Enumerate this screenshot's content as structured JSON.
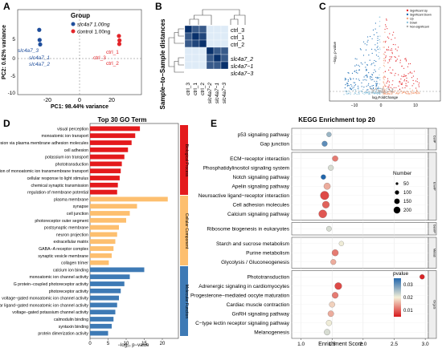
{
  "panelA": {
    "letter": "A",
    "legend_title": "Group",
    "legend_items": [
      {
        "label": "slc4a7 1.00ng",
        "color": "#1f4e9c"
      },
      {
        "label": "control 1.00ng",
        "color": "#e3262b"
      }
    ],
    "xlabel": "PC1: 98.44% variance",
    "ylabel": "PC2: 0.62% variance",
    "xticks": [
      "-20",
      "0",
      "20"
    ],
    "yticks": [
      "5",
      "0",
      "-5",
      "-10"
    ],
    "point_labels_blue": [
      "slc4a7_3",
      "slc4a7_1",
      "slc4a7_2"
    ],
    "point_labels_red": [
      "ctrl_1",
      "ctrl_3",
      "ctrl_2"
    ],
    "points": [
      {
        "x": -21.5,
        "y": 3.0,
        "group": 0
      },
      {
        "x": -21.3,
        "y": 0.5,
        "group": 0
      },
      {
        "x": -21.0,
        "y": -0.6,
        "group": 0
      },
      {
        "x": 21.0,
        "y": 1.5,
        "group": 1
      },
      {
        "x": 21.3,
        "y": 0.4,
        "group": 1
      },
      {
        "x": 21.2,
        "y": -0.5,
        "group": 1
      }
    ],
    "xlim": [
      -33,
      33
    ],
    "ylim": [
      -13,
      8
    ]
  },
  "panelB": {
    "letter": "B",
    "ylabel": "Sample−to−Sample distances",
    "row_labels": [
      "ctrl_3",
      "ctrl_1",
      "ctrl_2",
      "slc4a7_2",
      "slc4a7−1",
      "slc4a7−3"
    ],
    "col_labels": [
      "ctrl_3",
      "ctrl_1",
      "ctrl_2",
      "slc4a7−2",
      "slc4a7−1",
      "slc4a7−3"
    ],
    "matrix": [
      [
        0,
        2,
        2,
        9,
        9,
        9
      ],
      [
        2,
        0,
        1,
        9,
        9,
        9
      ],
      [
        2,
        1,
        0,
        9,
        9,
        9
      ],
      [
        9,
        9,
        9,
        0,
        2,
        2
      ],
      [
        9,
        9,
        9,
        2,
        0,
        2
      ],
      [
        9,
        9,
        9,
        2,
        2,
        0
      ]
    ]
  },
  "panelC": {
    "letter": "C",
    "legend": [
      {
        "label": "Significant Up",
        "color": "#e3262b"
      },
      {
        "label": "Significant Down",
        "color": "#1f6fb5"
      },
      {
        "label": "Up",
        "color": "#f4a582"
      },
      {
        "label": "Down",
        "color": "#92c5de"
      },
      {
        "label": "Non-significant",
        "color": "#aaaaaa"
      }
    ],
    "xlabel": "log₂FoldChange",
    "ylabel": "−log₁₀ p-value",
    "xticks": [
      "−10",
      "0",
      "10"
    ],
    "yticks": [
      "0",
      "50",
      "100",
      "150",
      "200",
      "250",
      "300"
    ]
  },
  "panelD": {
    "letter": "D",
    "title": "Top 30 GO Term",
    "xlabel": "−log₁₀ p−value",
    "xticks": [
      "0",
      "5",
      "10",
      "15",
      "20"
    ],
    "categories": [
      "Biological Process",
      "Cellular Component",
      "Molecular Function"
    ],
    "colors": [
      "#e41a1c",
      "#fdbf6f",
      "#3e7ab5"
    ],
    "terms": [
      {
        "label": "regulation of membrane potential",
        "value": 7.5,
        "cat": 0
      },
      {
        "label": "chemical synaptic transmission",
        "value": 7.7,
        "cat": 0
      },
      {
        "label": "cellular response to light stimulus",
        "value": 8.2,
        "cat": 0
      },
      {
        "label": "regulation of monoatomic ion transmembrane transport",
        "value": 8.5,
        "cat": 0
      },
      {
        "label": "phototransduction",
        "value": 8.8,
        "cat": 0
      },
      {
        "label": "potassium ion transport",
        "value": 9.5,
        "cat": 0
      },
      {
        "label": "cell adhesion",
        "value": 10.5,
        "cat": 0
      },
      {
        "label": "homophilic cell adhesion via plasma membrane adhesion molecules",
        "value": 11.5,
        "cat": 0
      },
      {
        "label": "monoatomic ion transport",
        "value": 12.5,
        "cat": 0
      },
      {
        "label": "visual perception",
        "value": 13.8,
        "cat": 0
      },
      {
        "label": "collagen trimer",
        "value": 5.2,
        "cat": 1
      },
      {
        "label": "synaptic vesicle membrane",
        "value": 6.0,
        "cat": 1
      },
      {
        "label": "GABA−A receptor complex",
        "value": 6.5,
        "cat": 1
      },
      {
        "label": "extracellular matrix",
        "value": 7.0,
        "cat": 1
      },
      {
        "label": "neuron projection",
        "value": 7.5,
        "cat": 1
      },
      {
        "label": "postsynaptic membrane",
        "value": 8.0,
        "cat": 1
      },
      {
        "label": "photoreceptor outer segment",
        "value": 10.0,
        "cat": 1
      },
      {
        "label": "cell junction",
        "value": 11.0,
        "cat": 1
      },
      {
        "label": "synapse",
        "value": 13.0,
        "cat": 1
      },
      {
        "label": "plasma membrane",
        "value": 21.5,
        "cat": 1
      },
      {
        "label": "protein dimerization activity",
        "value": 5.0,
        "cat": 2
      },
      {
        "label": "syntaxin binding",
        "value": 6.0,
        "cat": 2
      },
      {
        "label": "calmodulin binding",
        "value": 6.5,
        "cat": 2
      },
      {
        "label": "voltage−gated potassium channel activity",
        "value": 7.0,
        "cat": 2
      },
      {
        "label": "extracellular ligand−gated monoatomic ion channel activity",
        "value": 7.5,
        "cat": 2
      },
      {
        "label": "voltage−gated monoatomic ion channel activity",
        "value": 8.0,
        "cat": 2
      },
      {
        "label": "photoreceptor activity",
        "value": 8.5,
        "cat": 2
      },
      {
        "label": "G protein−coupled photoreceptor activity",
        "value": 9.5,
        "cat": 2
      },
      {
        "label": "monoatomic ion channel activity",
        "value": 11.0,
        "cat": 2
      },
      {
        "label": "calcium ion binding",
        "value": 15.0,
        "cat": 2
      }
    ]
  },
  "panelE": {
    "letter": "E",
    "title": "KEGG Enrichment top 20",
    "xlabel": "Enrichment Score",
    "xticks": [
      "1.0",
      "1.5",
      "2.0",
      "2.5",
      "3.0"
    ],
    "size_legend_title": "Number",
    "size_legend": [
      "50",
      "100",
      "150",
      "200"
    ],
    "color_legend_title": "pvalue",
    "color_legend_ticks": [
      "0.03",
      "0.02",
      "0.01"
    ],
    "strip_labels": [
      "CellP",
      "EnvIP",
      "GenIP",
      "Metab",
      "OrgsS"
    ],
    "groups": [
      {
        "terms": [
          {
            "label": "p53 signaling pathway",
            "x": 1.45,
            "n": 40,
            "p": 0.025
          },
          {
            "label": "Gap junction",
            "x": 1.38,
            "n": 60,
            "p": 0.03
          }
        ]
      },
      {
        "terms": [
          {
            "label": "ECM−receptor interaction",
            "x": 1.55,
            "n": 70,
            "p": 0.008
          },
          {
            "label": "Phosphatidylinositol signaling system",
            "x": 1.48,
            "n": 60,
            "p": 0.02
          },
          {
            "label": "Notch signaling pathway",
            "x": 1.36,
            "n": 40,
            "p": 0.035
          },
          {
            "label": "Apelin signaling pathway",
            "x": 1.42,
            "n": 110,
            "p": 0.012
          },
          {
            "label": "Neuroactive ligand−receptor interaction",
            "x": 1.38,
            "n": 220,
            "p": 0.004
          },
          {
            "label": "Cell adhesion molecules",
            "x": 1.4,
            "n": 130,
            "p": 0.006
          },
          {
            "label": "Calcium signaling pathway",
            "x": 1.35,
            "n": 190,
            "p": 0.005
          }
        ]
      },
      {
        "terms": [
          {
            "label": "Ribosome biogenesis in eukaryotes",
            "x": 1.45,
            "n": 50,
            "p": 0.02
          }
        ]
      },
      {
        "terms": [
          {
            "label": "Starch and sucrose metabolism",
            "x": 1.65,
            "n": 40,
            "p": 0.018
          },
          {
            "label": "Purine metabolism",
            "x": 1.55,
            "n": 100,
            "p": 0.008
          },
          {
            "label": "Glycolysis / Gluconeogenesis",
            "x": 1.52,
            "n": 60,
            "p": 0.012
          }
        ]
      },
      {
        "terms": [
          {
            "label": "Phototransduction",
            "x": 2.95,
            "n": 40,
            "p": 0.001
          },
          {
            "label": "Adrenergic signaling in cardiomyocytes",
            "x": 1.6,
            "n": 130,
            "p": 0.004
          },
          {
            "label": "Progesterone−mediated oocyte maturation",
            "x": 1.55,
            "n": 90,
            "p": 0.008
          },
          {
            "label": "Cardiac muscle contraction",
            "x": 1.5,
            "n": 70,
            "p": 0.015
          },
          {
            "label": "GnRH signaling pathway",
            "x": 1.48,
            "n": 80,
            "p": 0.012
          },
          {
            "label": "C−type lectin receptor signaling pathway",
            "x": 1.45,
            "n": 70,
            "p": 0.018
          },
          {
            "label": "Melanogenesis",
            "x": 1.42,
            "n": 80,
            "p": 0.02
          }
        ]
      }
    ]
  }
}
